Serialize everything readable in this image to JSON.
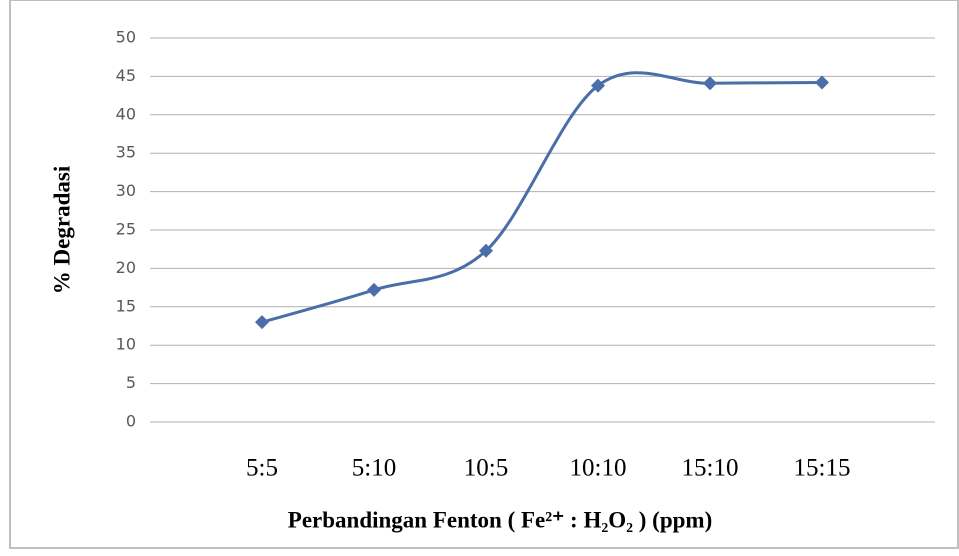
{
  "chart_data": {
    "type": "line",
    "x_label": "Perbandingan Fenton (  Fe²⁺ : H₂O₂ ) (ppm)",
    "y_label": "% Degradasi",
    "categories": [
      "5:5",
      "5:10",
      "10:5",
      "10:10",
      "15:10",
      "15:15"
    ],
    "values": [
      13,
      17.2,
      22.3,
      43.8,
      44.1,
      44.2
    ],
    "color": "#4a6fa8",
    "smooth": true,
    "ylim": [
      0,
      50
    ],
    "yticks": [
      0,
      5,
      10,
      15,
      20,
      25,
      30,
      35,
      40,
      45,
      50
    ],
    "grid": true
  }
}
